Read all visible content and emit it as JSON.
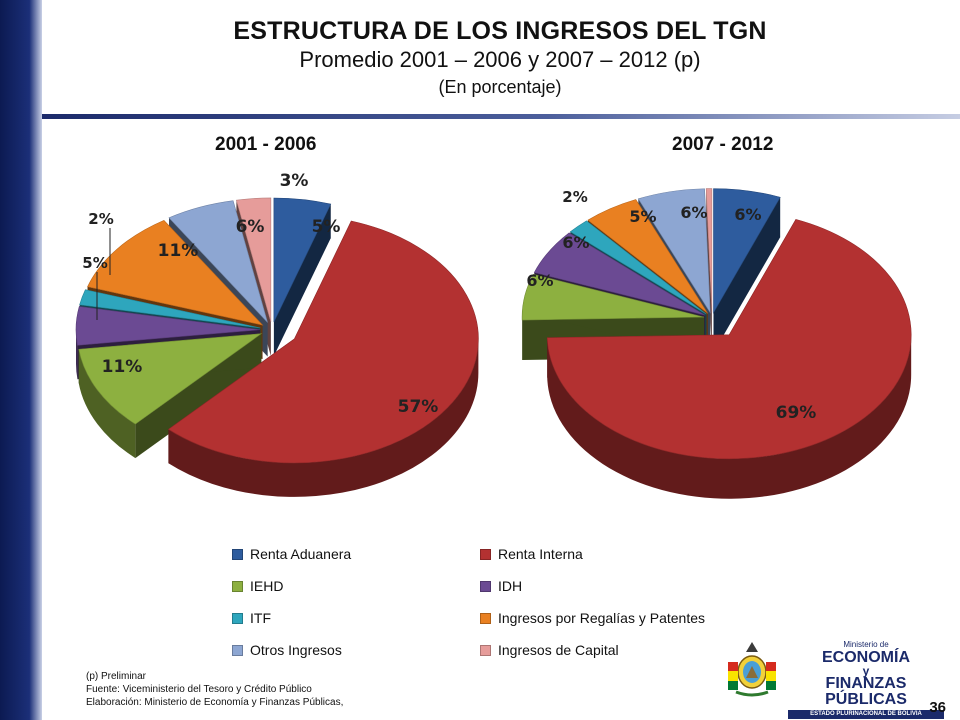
{
  "header": {
    "title": "ESTRUCTURA DE LOS INGRESOS DEL TGN",
    "subtitle": "Promedio 2001 – 2006 y 2007 – 2012 (p)",
    "unit": "(En porcentaje)"
  },
  "chart_data": [
    {
      "type": "pie",
      "title": "2001 - 2006",
      "categories": [
        "Renta Aduanera",
        "Renta Interna",
        "IEHD",
        "IDH",
        "ITF",
        "Ingresos por Regalías y Patentes",
        "Otros Ingresos",
        "Ingresos de Capital"
      ],
      "values": [
        5,
        57,
        11,
        5,
        2,
        11,
        6,
        3
      ],
      "labels": [
        "5%",
        "57%",
        "11%",
        "5%",
        "2%",
        "11%",
        "6%",
        "3%"
      ],
      "exploded": true
    },
    {
      "type": "pie",
      "title": "2007 - 2012",
      "categories": [
        "Renta Aduanera",
        "Renta Interna",
        "IEHD",
        "IDH",
        "ITF",
        "Ingresos por Regalías y Patentes",
        "Otros Ingresos",
        "Ingresos de Capital"
      ],
      "values": [
        6,
        69,
        6,
        6,
        2,
        5,
        6,
        0.5
      ],
      "labels": [
        "6%",
        "69%",
        "6%",
        "6%",
        "2%",
        "5%",
        "6%",
        ""
      ],
      "exploded": true
    }
  ],
  "legend": {
    "items": [
      {
        "label": "Renta Aduanera",
        "color": "#2e5c9e"
      },
      {
        "label": "Renta Interna",
        "color": "#b33131"
      },
      {
        "label": "IEHD",
        "color": "#8db040"
      },
      {
        "label": "IDH",
        "color": "#6b4a93"
      },
      {
        "label": " ITF",
        "color": "#2ea6bd"
      },
      {
        "label": "Ingresos por Regalías y Patentes",
        "color": "#e98021"
      },
      {
        "label": "Otros Ingresos",
        "color": "#8da6d2"
      },
      {
        "label": "Ingresos de Capital",
        "color": "#e69c9a"
      }
    ]
  },
  "footer": {
    "note": "(p) Preliminar",
    "source": "Fuente: Viceministerio del Tesoro y Crédito Público",
    "elaboration": "Elaboración: Ministerio de Economía y Finanzas Públicas,",
    "page_number": "36"
  },
  "logo": {
    "line1": "Ministerio de",
    "line2": "ECONOMÍA",
    "line3": "y",
    "line4": "FINANZAS PÚBLICAS",
    "line5": "ESTADO PLURINACIONAL DE BOLIVIA"
  }
}
